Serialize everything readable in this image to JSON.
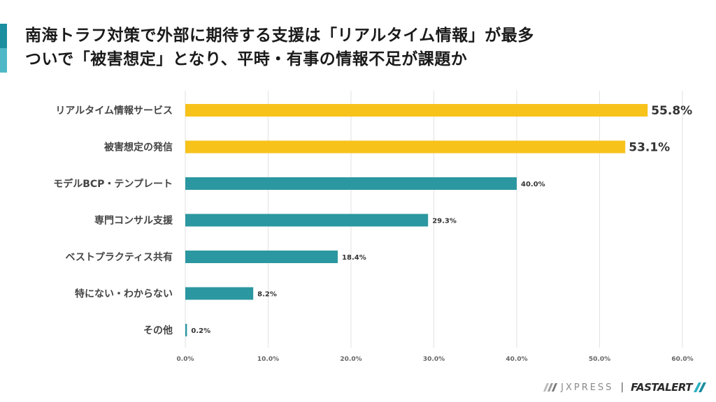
{
  "header": {
    "title_line1": "南海トラフ対策で外部に期待する支援は「リアルタイム情報」が最多",
    "title_line2": "ついで「被害想定」となり、平時・有事の情報不足が課題か"
  },
  "colors": {
    "accent": "#1b8ea0",
    "highlight_bar": "#f7c21a",
    "normal_bar": "#2b97a0",
    "grid": "#e2e2e2"
  },
  "footer": {
    "brand1": "JXPRESS",
    "separator": "|",
    "brand2": "FASTALERT"
  },
  "chart_data": {
    "type": "bar",
    "orientation": "horizontal",
    "title": "",
    "xlabel": "",
    "ylabel": "",
    "xlim": [
      0,
      60
    ],
    "grid": true,
    "legend": "none",
    "x_ticks": [
      "0.0%",
      "10.0%",
      "20.0%",
      "30.0%",
      "40.0%",
      "50.0%",
      "60.0%"
    ],
    "categories": [
      "リアルタイム情報サービス",
      "被害想定の発信",
      "モデルBCP・テンプレート",
      "専門コンサル支援",
      "ベストプラクティス共有",
      "特にない・わからない",
      "その他"
    ],
    "values": [
      55.8,
      53.1,
      40.0,
      29.3,
      18.4,
      8.2,
      0.2
    ],
    "value_labels": [
      "55.8%",
      "53.1%",
      "40.0%",
      "29.3%",
      "18.4%",
      "8.2%",
      "0.2%"
    ],
    "highlighted": [
      true,
      true,
      false,
      false,
      false,
      false,
      false
    ]
  }
}
